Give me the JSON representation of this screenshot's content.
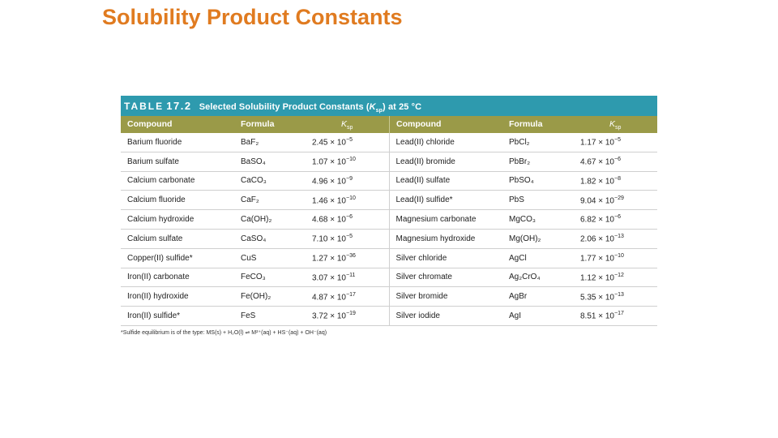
{
  "title": "Solubility Product Constants",
  "table": {
    "caption_prefix": "TABLE",
    "caption_number": "17.2",
    "caption_text": "Selected Solubility Product Constants (",
    "caption_k": "K",
    "caption_k_sub": "sp",
    "caption_suffix": ") at 25 °C",
    "headers": {
      "compound": "Compound",
      "formula": "Formula",
      "ksp_k": "K",
      "ksp_sub": "sp"
    },
    "left_rows": [
      {
        "compound": "Barium fluoride",
        "formula": "BaF₂",
        "mantissa": "2.45",
        "times": "× 10",
        "exp": "−5"
      },
      {
        "compound": "Barium sulfate",
        "formula": "BaSO₄",
        "mantissa": "1.07",
        "times": "× 10",
        "exp": "−10"
      },
      {
        "compound": "Calcium carbonate",
        "formula": "CaCO₃",
        "mantissa": "4.96",
        "times": "× 10",
        "exp": "−9"
      },
      {
        "compound": "Calcium fluoride",
        "formula": "CaF₂",
        "mantissa": "1.46",
        "times": "× 10",
        "exp": "−10"
      },
      {
        "compound": "Calcium hydroxide",
        "formula": "Ca(OH)₂",
        "mantissa": "4.68",
        "times": "× 10",
        "exp": "−6"
      },
      {
        "compound": "Calcium sulfate",
        "formula": "CaSO₄",
        "mantissa": "7.10",
        "times": "× 10",
        "exp": "−5"
      },
      {
        "compound": "Copper(II) sulfide*",
        "formula": "CuS",
        "mantissa": "1.27",
        "times": "× 10",
        "exp": "−36"
      },
      {
        "compound": "Iron(II) carbonate",
        "formula": "FeCO₃",
        "mantissa": "3.07",
        "times": "× 10",
        "exp": "−11"
      },
      {
        "compound": "Iron(II) hydroxide",
        "formula": "Fe(OH)₂",
        "mantissa": "4.87",
        "times": "× 10",
        "exp": "−17"
      },
      {
        "compound": "Iron(II) sulfide*",
        "formula": "FeS",
        "mantissa": "3.72",
        "times": "× 10",
        "exp": "−19"
      }
    ],
    "right_rows": [
      {
        "compound": "Lead(II) chloride",
        "formula": "PbCl₂",
        "mantissa": "1.17",
        "times": "× 10",
        "exp": "−5"
      },
      {
        "compound": "Lead(II) bromide",
        "formula": "PbBr₂",
        "mantissa": "4.67",
        "times": "× 10",
        "exp": "−6"
      },
      {
        "compound": "Lead(II) sulfate",
        "formula": "PbSO₄",
        "mantissa": "1.82",
        "times": "× 10",
        "exp": "−8"
      },
      {
        "compound": "Lead(II) sulfide*",
        "formula": "PbS",
        "mantissa": "9.04",
        "times": "× 10",
        "exp": "−29"
      },
      {
        "compound": "Magnesium carbonate",
        "formula": "MgCO₃",
        "mantissa": "6.82",
        "times": "× 10",
        "exp": "−6"
      },
      {
        "compound": "Magnesium hydroxide",
        "formula": "Mg(OH)₂",
        "mantissa": "2.06",
        "times": "× 10",
        "exp": "−13"
      },
      {
        "compound": "Silver chloride",
        "formula": "AgCl",
        "mantissa": "1.77",
        "times": "× 10",
        "exp": "−10"
      },
      {
        "compound": "Silver chromate",
        "formula": "Ag₂CrO₄",
        "mantissa": "1.12",
        "times": "× 10",
        "exp": "−12"
      },
      {
        "compound": "Silver bromide",
        "formula": "AgBr",
        "mantissa": "5.35",
        "times": "× 10",
        "exp": "−13"
      },
      {
        "compound": "Silver iodide",
        "formula": "AgI",
        "mantissa": "8.51",
        "times": "× 10",
        "exp": "−17"
      }
    ],
    "footnote": "*Sulfide equilibrium is of the type: MS(s) + H₂O(l) ⇌ M²⁺(aq) + HS⁻(aq) + OH⁻(aq)"
  },
  "colors": {
    "title": "#E07B20",
    "table_header_bg": "#2E9AAE",
    "column_header_bg": "#9A9A48"
  }
}
